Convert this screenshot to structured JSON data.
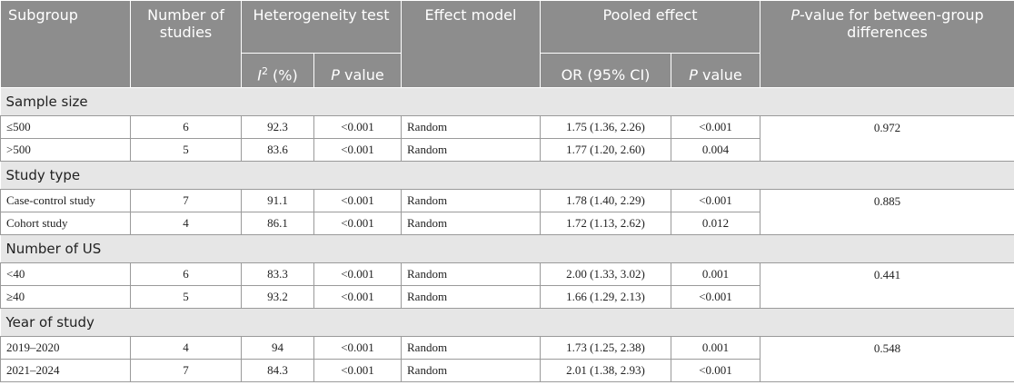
{
  "header": {
    "subgroup": "Subgroup",
    "number_of_studies": "Number of studies",
    "heterogeneity_test": "Heterogeneity test",
    "i2": [
      "I",
      "2",
      " (%)"
    ],
    "het_p": [
      "P",
      " value"
    ],
    "effect_model": "Effect model",
    "pooled_effect": "Pooled effect",
    "or_ci": "OR (95% CI)",
    "pooled_p": [
      "P",
      " value"
    ],
    "between": [
      "P",
      "-value for between-group differences"
    ]
  },
  "groups": [
    {
      "title": "Sample size",
      "p_between": "0.972",
      "rows": [
        [
          "≤500",
          6,
          "92.3",
          "<0.001",
          "Random",
          "1.75 (1.36, 2.26)",
          "<0.001"
        ],
        [
          ">500",
          5,
          "83.6",
          "<0.001",
          "Random",
          "1.77 (1.20, 2.60)",
          "0.004"
        ]
      ]
    },
    {
      "title": "Study type",
      "p_between": "0.885",
      "rows": [
        [
          "Case-control study",
          7,
          "91.1",
          "<0.001",
          "Random",
          "1.78 (1.40, 2.29)",
          "<0.001"
        ],
        [
          "Cohort study",
          4,
          "86.1",
          "<0.001",
          "Random",
          "1.72 (1.13, 2.62)",
          "0.012"
        ]
      ]
    },
    {
      "title": "Number of US",
      "p_between": "0.441",
      "rows": [
        [
          "<40",
          6,
          "83.3",
          "<0.001",
          "Random",
          "2.00 (1.33, 3.02)",
          "0.001"
        ],
        [
          "≥40",
          5,
          "93.2",
          "<0.001",
          "Random",
          "1.66 (1.29, 2.13)",
          "<0.001"
        ]
      ]
    },
    {
      "title": "Year of study",
      "p_between": "0.548",
      "rows": [
        [
          "2019–2020",
          4,
          "94",
          "<0.001",
          "Random",
          "1.73 (1.25, 2.38)",
          "0.001"
        ],
        [
          "2021–2024",
          7,
          "84.3",
          "<0.001",
          "Random",
          "2.01 (1.38, 2.93)",
          "<0.001"
        ]
      ]
    }
  ]
}
